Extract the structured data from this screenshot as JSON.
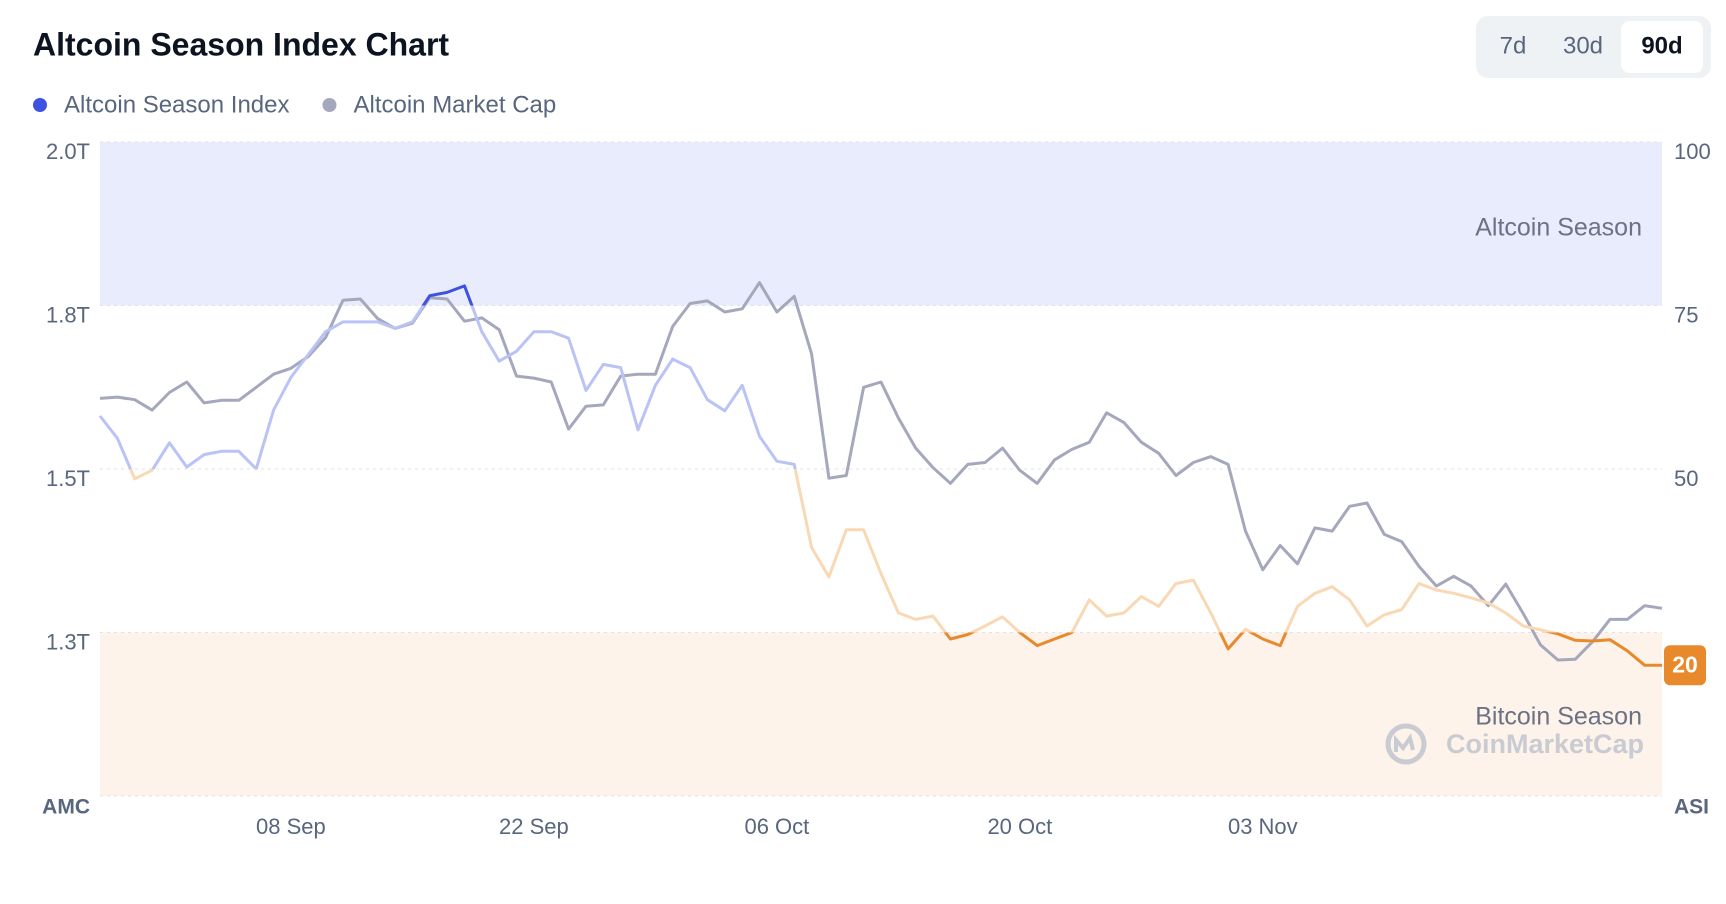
{
  "header": {
    "title": "Altcoin Season Index Chart",
    "tabs": [
      "7d",
      "30d",
      "90d"
    ],
    "active_tab": 2
  },
  "chart_data": {
    "type": "line",
    "categories": [
      null,
      null,
      null,
      null,
      null,
      null,
      null,
      null,
      null,
      null,
      null,
      "08 Sep",
      null,
      null,
      null,
      null,
      null,
      null,
      null,
      null,
      null,
      null,
      null,
      null,
      null,
      "22 Sep",
      null,
      null,
      null,
      null,
      null,
      null,
      null,
      null,
      null,
      null,
      null,
      null,
      null,
      "06 Oct",
      null,
      null,
      null,
      null,
      null,
      null,
      null,
      null,
      null,
      null,
      null,
      null,
      null,
      "20 Oct",
      null,
      null,
      null,
      null,
      null,
      null,
      null,
      null,
      null,
      null,
      null,
      null,
      null,
      "03 Nov",
      null,
      null,
      null,
      null,
      null,
      null,
      null,
      null,
      null,
      null,
      null,
      null,
      null,
      null,
      null,
      null,
      null,
      null,
      null,
      null,
      null,
      null,
      null
    ],
    "series": [
      {
        "name": "Altcoin Season Index",
        "color": "#3d52e0",
        "axis": "y2",
        "values": [
          58.1,
          54.7,
          48.5,
          49.8,
          54,
          50.3,
          52.2,
          52.7,
          52.7,
          50,
          59,
          64,
          67.5,
          71,
          72.5,
          72.5,
          72.5,
          71.5,
          72.5,
          76.5,
          77,
          78,
          71,
          66.5,
          68,
          71,
          71,
          70,
          62,
          66,
          65.5,
          56,
          62.8,
          66.8,
          65.5,
          60.6,
          58.9,
          62.8,
          55,
          51.2,
          50.7,
          38,
          33.5,
          40.7,
          40.7,
          34,
          28,
          27,
          27.5,
          24,
          24.7,
          26,
          27.4,
          25,
          23,
          24,
          25,
          30,
          27.5,
          28,
          30.5,
          29,
          32.5,
          33,
          28,
          22.5,
          25.5,
          24,
          23,
          29,
          31,
          32,
          30,
          26,
          27.7,
          28.5,
          32.5,
          31.5,
          31,
          30.3,
          29.5,
          28,
          26,
          25.4,
          24.8,
          23.8,
          23.7,
          23.9,
          22.2,
          20,
          20
        ]
      },
      {
        "name": "Altcoin Market Cap",
        "color": "#a5a8bd",
        "axis": "y",
        "values": [
          1.608,
          1.61,
          1.606,
          1.59,
          1.617,
          1.633,
          1.601,
          1.605,
          1.605,
          1.625,
          1.645,
          1.654,
          1.672,
          1.701,
          1.758,
          1.76,
          1.73,
          1.715,
          1.723,
          1.762,
          1.76,
          1.726,
          1.731,
          1.713,
          1.642,
          1.639,
          1.633,
          1.561,
          1.596,
          1.598,
          1.642,
          1.645,
          1.645,
          1.718,
          1.753,
          1.757,
          1.74,
          1.745,
          1.785,
          1.74,
          1.764,
          1.676,
          1.486,
          1.49,
          1.625,
          1.633,
          1.578,
          1.532,
          1.502,
          1.478,
          1.507,
          1.51,
          1.532,
          1.498,
          1.478,
          1.514,
          1.53,
          1.541,
          1.586,
          1.571,
          1.541,
          1.524,
          1.49,
          1.51,
          1.519,
          1.507,
          1.405,
          1.346,
          1.383,
          1.355,
          1.41,
          1.405,
          1.443,
          1.448,
          1.4,
          1.389,
          1.351,
          1.321,
          1.336,
          1.321,
          1.291,
          1.324,
          1.279,
          1.231,
          1.208,
          1.209,
          1.236,
          1.27,
          1.27,
          1.291,
          1.287
        ]
      }
    ],
    "ylim": [
      1.0,
      2.0
    ],
    "yticks": [
      {
        "value": 2.0,
        "label": "2.0T"
      },
      {
        "value": 1.75,
        "label": "1.8T"
      },
      {
        "value": 1.5,
        "label": "1.5T"
      },
      {
        "value": 1.25,
        "label": "1.3T"
      }
    ],
    "y2lim": [
      0,
      100
    ],
    "y2ticks": [
      100,
      75,
      50
    ],
    "ylabel": "AMC",
    "y2label": "ASI",
    "grid": true,
    "zones": [
      {
        "label": "Altcoin Season",
        "from": 75,
        "to": 100,
        "color": "#e9ecfd"
      },
      {
        "label": "Bitcoin Season",
        "from": 0,
        "to": 25,
        "color": "#fdf3ea"
      }
    ],
    "line_zones": [
      {
        "from": 75,
        "color": "#3d52e0"
      },
      {
        "from": 50,
        "color": "#b9c3f6"
      },
      {
        "from": 25,
        "color": "#f9d8b4"
      },
      {
        "from": 0,
        "color": "#e8892c"
      }
    ],
    "badge_color": "#e8892c",
    "watermark": "CoinMarketCap"
  }
}
